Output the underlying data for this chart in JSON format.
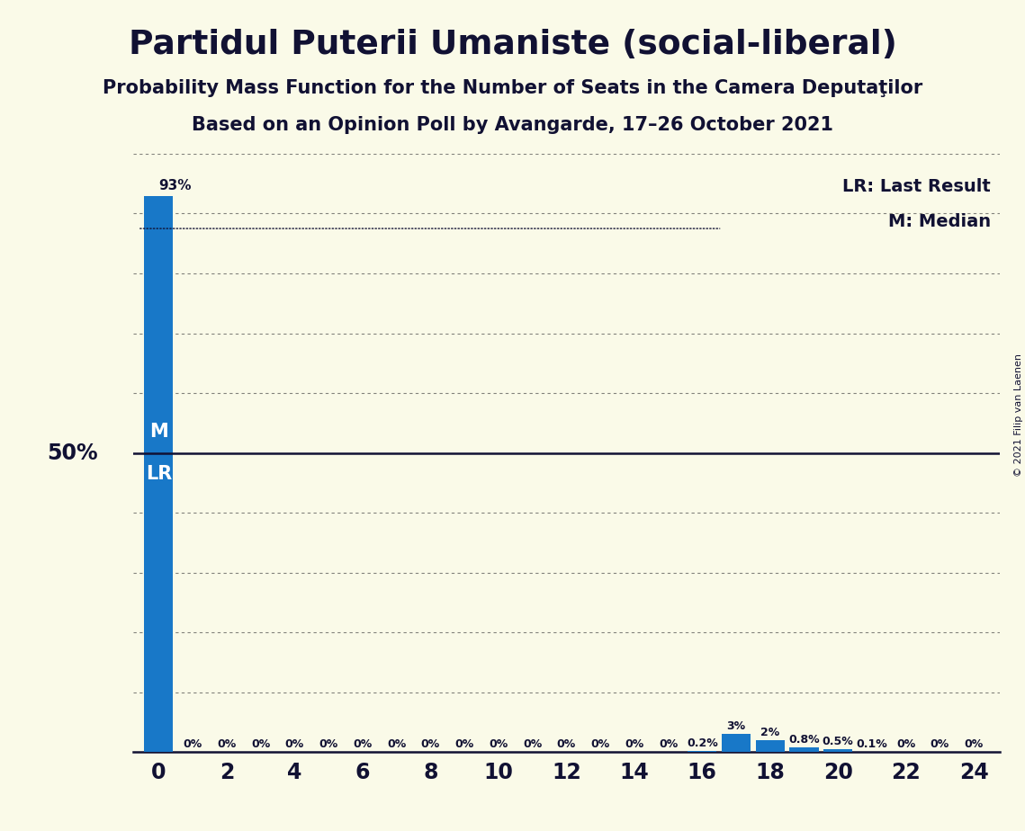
{
  "title": "Partidul Puterii Umaniste (social-liberal)",
  "subtitle1": "Probability Mass Function for the Number of Seats in the Camera Deputaţilor",
  "subtitle2": "Based on an Opinion Poll by Avangarde, 17–26 October 2021",
  "copyright": "© 2021 Filip van Laenen",
  "x_values": [
    0,
    1,
    2,
    3,
    4,
    5,
    6,
    7,
    8,
    9,
    10,
    11,
    12,
    13,
    14,
    15,
    16,
    17,
    18,
    19,
    20,
    21,
    22,
    23,
    24
  ],
  "y_values": [
    93,
    0,
    0,
    0,
    0,
    0,
    0,
    0,
    0,
    0,
    0,
    0,
    0,
    0,
    0,
    0,
    0.2,
    3,
    2,
    0.8,
    0.5,
    0.1,
    0,
    0,
    0
  ],
  "bar_color": "#1878c8",
  "background_color": "#fafae8",
  "median_y": 50,
  "last_result_y": 50,
  "ylim": [
    0,
    100
  ],
  "xlim": [
    -0.75,
    24.75
  ],
  "xticks": [
    0,
    2,
    4,
    6,
    8,
    10,
    12,
    14,
    16,
    18,
    20,
    22,
    24
  ],
  "ytick_positions": [
    10,
    20,
    30,
    40,
    50,
    60,
    70,
    80,
    90,
    100
  ],
  "legend_lr_label": "LR: Last Result",
  "legend_m_label": "M: Median",
  "label_50pct": "50%",
  "bar_labels": {
    "0": "93%",
    "16": "0.2%",
    "17": "3%",
    "18": "2%",
    "19": "0.8%",
    "20": "0.5%",
    "21": "0.1%"
  },
  "bar_label_zeros": [
    1,
    2,
    3,
    4,
    5,
    6,
    7,
    8,
    9,
    10,
    11,
    12,
    13,
    14,
    15,
    22,
    23,
    24
  ],
  "text_color": "#111133",
  "grid_color": "#333333"
}
